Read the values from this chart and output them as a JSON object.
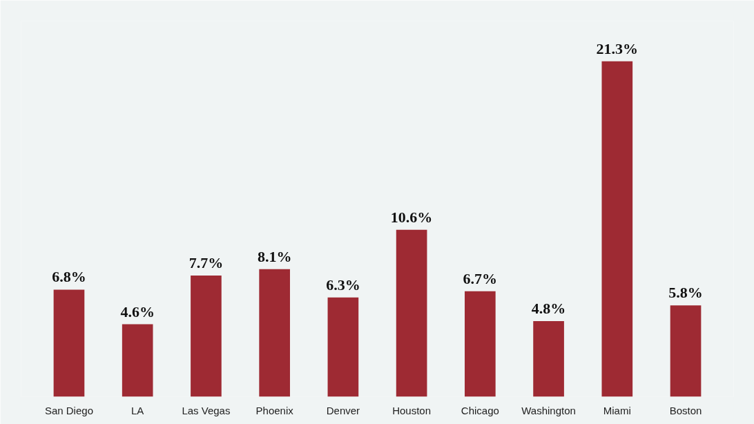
{
  "chart_data": {
    "type": "bar",
    "categories": [
      "San Diego",
      "LA",
      "Las Vegas",
      "Phoenix",
      "Denver",
      "Houston",
      "Chicago",
      "Washington",
      "Miami",
      "Boston"
    ],
    "values": [
      6.8,
      4.6,
      7.7,
      8.1,
      6.3,
      10.6,
      6.7,
      4.8,
      21.3,
      5.8
    ],
    "value_labels": [
      "6.8%",
      "4.6%",
      "7.7%",
      "8.1%",
      "6.3%",
      "10.6%",
      "6.7%",
      "4.8%",
      "21.3%",
      "5.8%"
    ],
    "color": "#9e2a33"
  }
}
